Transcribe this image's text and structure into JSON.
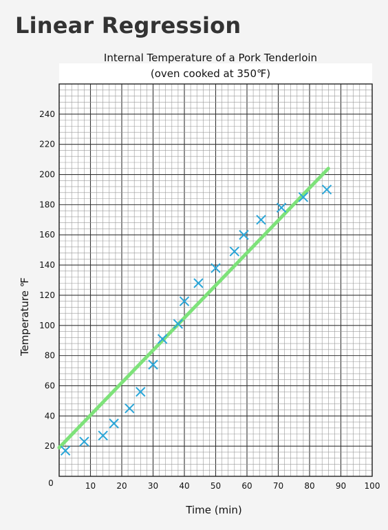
{
  "page": {
    "title": "Linear Regression"
  },
  "chart_data": {
    "type": "scatter",
    "title_line1": "Internal Temperature of a Pork Tenderloin",
    "title_line2": "(oven cooked at 350℉)",
    "xlabel": "Time (min)",
    "ylabel": "Temperature  ℉",
    "xlim": [
      0,
      100
    ],
    "ylim": [
      0,
      260
    ],
    "x_ticks": [
      0,
      10,
      20,
      30,
      40,
      50,
      60,
      70,
      80,
      90,
      100
    ],
    "y_ticks": [
      0,
      20,
      40,
      60,
      80,
      100,
      120,
      140,
      160,
      180,
      200,
      220,
      240
    ],
    "grid": true,
    "minor_grid_divisions_x": 5,
    "minor_grid_divisions_y": 5,
    "series": [
      {
        "marker": "x",
        "color": "#2aa6d8",
        "x": [
          2,
          8,
          14,
          17.5,
          22.5,
          26,
          30,
          33,
          38,
          40,
          44.5,
          50,
          56,
          59,
          64.5,
          71,
          78,
          85.5
        ],
        "y": [
          17,
          23,
          27,
          35,
          45,
          56,
          74,
          91,
          101,
          116,
          128,
          138,
          149,
          160,
          170,
          178,
          185,
          190
        ]
      }
    ],
    "regression_line": {
      "color": "#7ee27a",
      "x": [
        0,
        86
      ],
      "y": [
        19,
        204
      ]
    }
  }
}
